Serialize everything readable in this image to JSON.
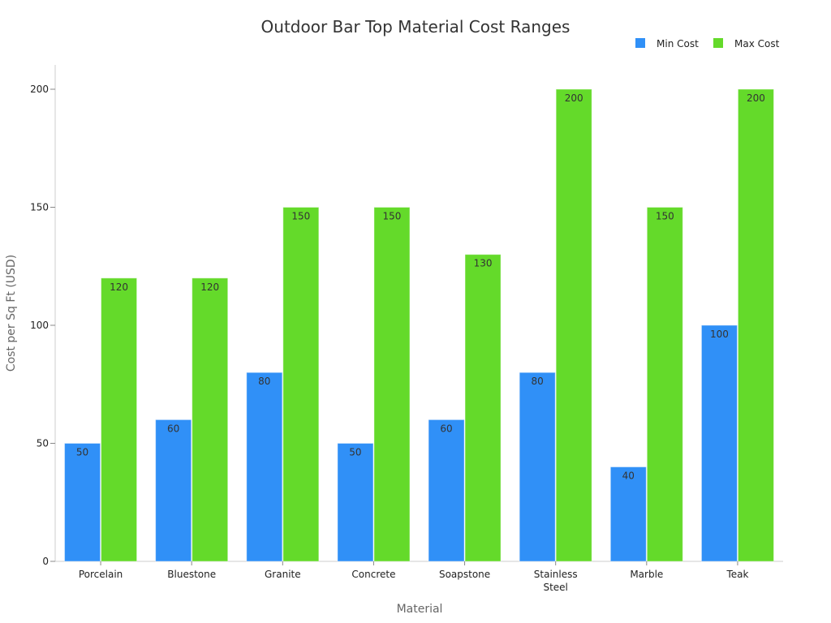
{
  "chart_data": {
    "type": "bar",
    "title": "Outdoor Bar Top Material Cost Ranges",
    "xlabel": "Material",
    "ylabel": "Cost per Sq Ft (USD)",
    "categories": [
      [
        "Porcelain"
      ],
      [
        "Bluestone"
      ],
      [
        "Granite"
      ],
      [
        "Concrete"
      ],
      [
        "Soapstone"
      ],
      [
        "Stainless",
        "Steel"
      ],
      [
        "Marble"
      ],
      [
        "Teak"
      ]
    ],
    "series": [
      {
        "name": "Min Cost",
        "color": "#3090f7",
        "values": [
          50,
          60,
          80,
          50,
          60,
          80,
          40,
          100
        ]
      },
      {
        "name": "Max Cost",
        "color": "#64da2a",
        "values": [
          120,
          120,
          150,
          150,
          130,
          200,
          150,
          200
        ]
      }
    ],
    "ylim": [
      0,
      210
    ],
    "yticks": [
      0,
      50,
      100,
      150,
      200
    ],
    "grid": false,
    "legend_position": "top-right"
  }
}
